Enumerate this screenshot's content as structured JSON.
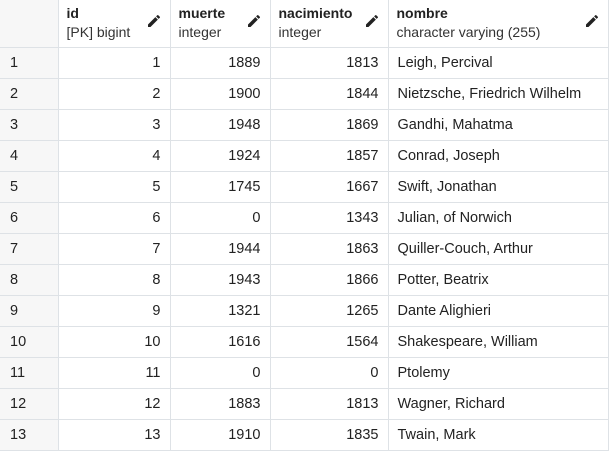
{
  "columns": [
    {
      "name": "id",
      "type": "[PK] bigint"
    },
    {
      "name": "muerte",
      "type": "integer"
    },
    {
      "name": "nacimiento",
      "type": "integer"
    },
    {
      "name": "nombre",
      "type": "character varying (255)"
    }
  ],
  "icons": {
    "edit": "pencil-icon"
  },
  "rows": [
    {
      "rownum": "1",
      "id": "1",
      "muerte": "1889",
      "nacimiento": "1813",
      "nombre": "Leigh, Percival"
    },
    {
      "rownum": "2",
      "id": "2",
      "muerte": "1900",
      "nacimiento": "1844",
      "nombre": "Nietzsche, Friedrich Wilhelm"
    },
    {
      "rownum": "3",
      "id": "3",
      "muerte": "1948",
      "nacimiento": "1869",
      "nombre": "Gandhi, Mahatma"
    },
    {
      "rownum": "4",
      "id": "4",
      "muerte": "1924",
      "nacimiento": "1857",
      "nombre": "Conrad, Joseph"
    },
    {
      "rownum": "5",
      "id": "5",
      "muerte": "1745",
      "nacimiento": "1667",
      "nombre": "Swift, Jonathan"
    },
    {
      "rownum": "6",
      "id": "6",
      "muerte": "0",
      "nacimiento": "1343",
      "nombre": "Julian, of Norwich"
    },
    {
      "rownum": "7",
      "id": "7",
      "muerte": "1944",
      "nacimiento": "1863",
      "nombre": "Quiller-Couch, Arthur"
    },
    {
      "rownum": "8",
      "id": "8",
      "muerte": "1943",
      "nacimiento": "1866",
      "nombre": "Potter, Beatrix"
    },
    {
      "rownum": "9",
      "id": "9",
      "muerte": "1321",
      "nacimiento": "1265",
      "nombre": "Dante Alighieri"
    },
    {
      "rownum": "10",
      "id": "10",
      "muerte": "1616",
      "nacimiento": "1564",
      "nombre": "Shakespeare, William"
    },
    {
      "rownum": "11",
      "id": "11",
      "muerte": "0",
      "nacimiento": "0",
      "nombre": "Ptolemy"
    },
    {
      "rownum": "12",
      "id": "12",
      "muerte": "1883",
      "nacimiento": "1813",
      "nombre": "Wagner, Richard"
    },
    {
      "rownum": "13",
      "id": "13",
      "muerte": "1910",
      "nacimiento": "1835",
      "nombre": "Twain, Mark"
    }
  ]
}
